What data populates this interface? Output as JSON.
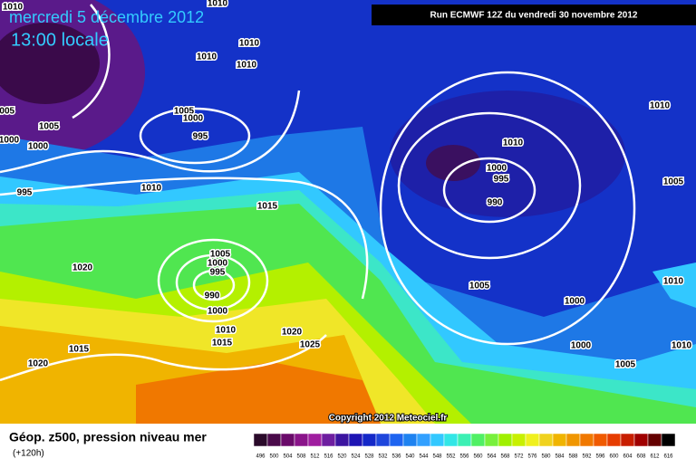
{
  "header": {
    "date": "mercredi 5 décembre 2012",
    "time": "13:00 locale",
    "run": "Run ECMWF 12Z du vendredi 30 novembre 2012"
  },
  "copyright": "Copyright 2012 Meteociel.fr",
  "footer": {
    "title": "Géop. z500, pression niveau mer",
    "lead": "(+120h)"
  },
  "legend": {
    "labels": [
      496,
      500,
      504,
      508,
      512,
      516,
      520,
      524,
      528,
      532,
      536,
      540,
      544,
      548,
      552,
      556,
      560,
      564,
      568,
      572,
      576,
      580,
      584,
      588,
      592,
      596,
      600,
      604,
      608,
      612,
      616
    ],
    "colors": [
      "#2a0a2a",
      "#4a0a4a",
      "#6a0a6a",
      "#8a148a",
      "#a01ea0",
      "#6e1ea0",
      "#3c14a0",
      "#1e14b4",
      "#1428c8",
      "#1e46dc",
      "#1e64f0",
      "#1e82f0",
      "#32a0ff",
      "#32c8ff",
      "#32e6e6",
      "#3cf0b4",
      "#50f064",
      "#78f03c",
      "#a0f000",
      "#c8f000",
      "#f0f01e",
      "#f0d21e",
      "#f0b400",
      "#f09600",
      "#f07800",
      "#f05a00",
      "#e63c00",
      "#c81e00",
      "#a00000",
      "#640000",
      "#000000"
    ]
  },
  "isobars": [
    "1010",
    "1010",
    "1010",
    "1010",
    "1010",
    "1005",
    "1005",
    "1000",
    "1005",
    "1000",
    "1000",
    "995",
    "995",
    "1010",
    "1015",
    "1020",
    "1005",
    "1000",
    "995",
    "990",
    "1000",
    "1010",
    "1015",
    "1020",
    "1025",
    "1015",
    "1020",
    "1010",
    "1000",
    "995",
    "990",
    "1010",
    "1005",
    "1005",
    "1000",
    "1010",
    "1000",
    "1005",
    "1010"
  ]
}
